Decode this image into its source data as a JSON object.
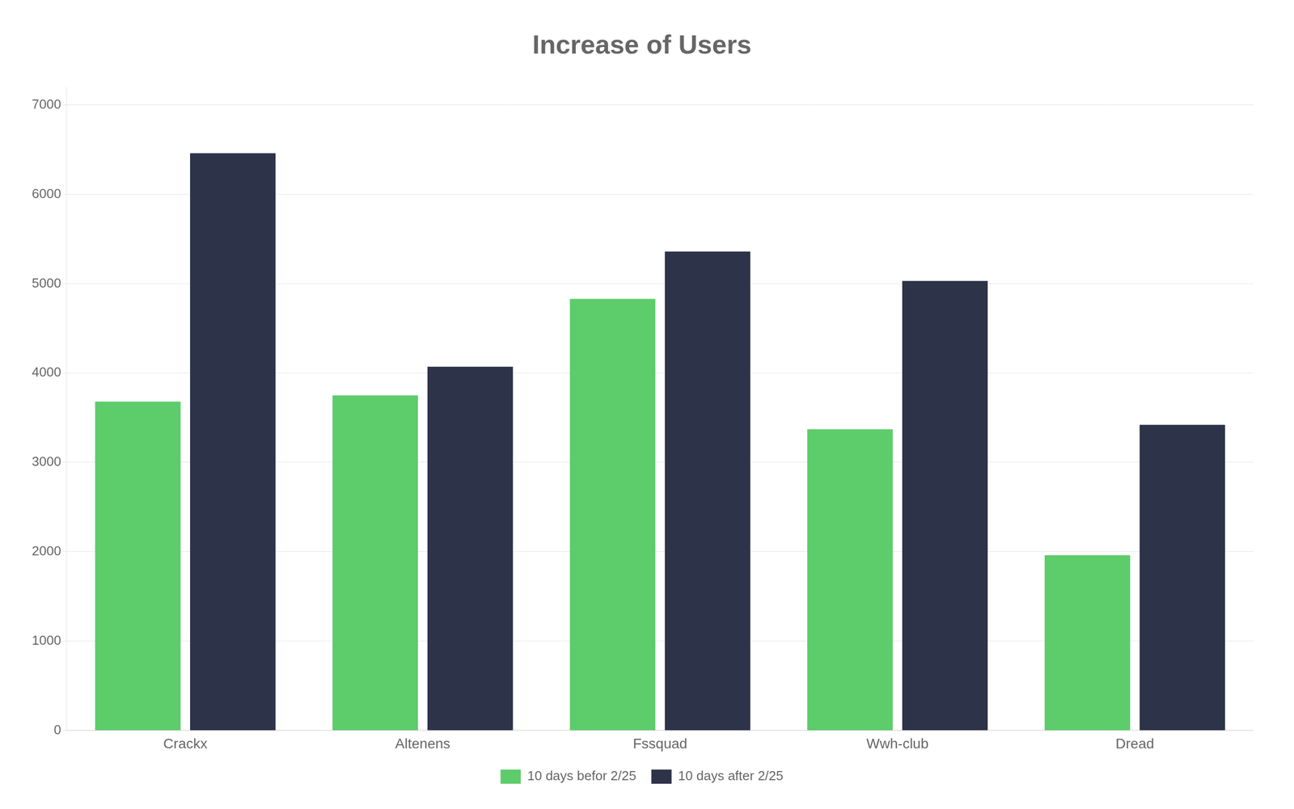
{
  "chart_data": {
    "type": "bar",
    "title": "Increase of Users",
    "categories": [
      "Crackx",
      "Altenens",
      "Fssquad",
      "Wwh-club",
      "Dread"
    ],
    "series": [
      {
        "name": "10 days befor 2/25",
        "color": "#5dcc6a",
        "values": [
          3680,
          3750,
          4830,
          3370,
          1960
        ]
      },
      {
        "name": "10 days after 2/25",
        "color": "#2d3349",
        "values": [
          6460,
          4070,
          5360,
          5030,
          3420
        ]
      }
    ],
    "ylim": [
      0,
      7200
    ],
    "yticks": [
      0,
      1000,
      2000,
      3000,
      4000,
      5000,
      6000,
      7000
    ],
    "grid": true,
    "legend": "bottom"
  }
}
